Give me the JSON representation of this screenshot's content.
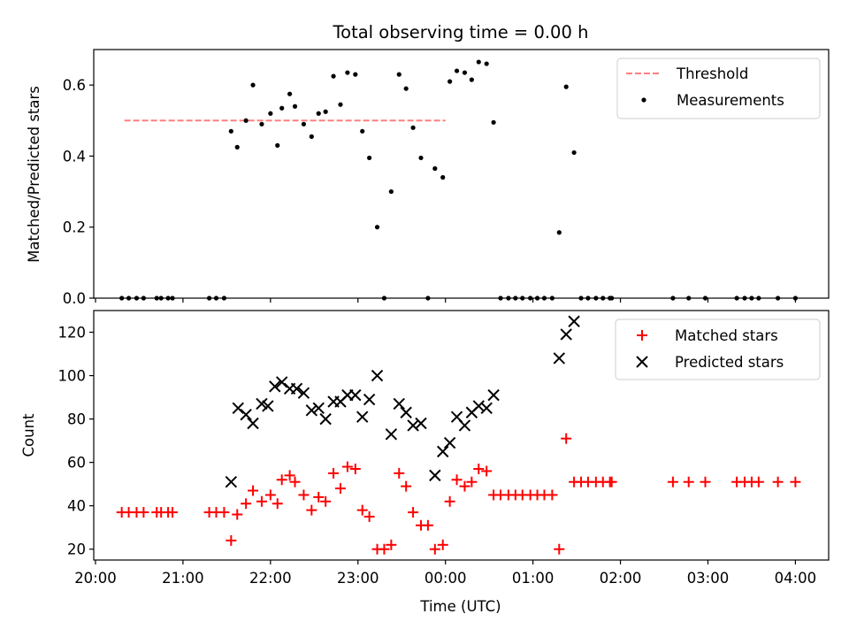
{
  "figure": {
    "title": "Total observing time = 0.00 h",
    "xlabel": "Time (UTC)"
  },
  "chart_data": [
    {
      "type": "scatter",
      "ylabel": "Matched/Predicted stars",
      "ylim": [
        0,
        0.7
      ],
      "yticks": [
        0.0,
        0.2,
        0.4,
        0.6
      ],
      "ytick_labels": [
        "0.0",
        "0.2",
        "0.4",
        "0.6"
      ],
      "xlim": [
        19.98,
        28.38
      ],
      "legend": {
        "position": "top-right"
      },
      "series": [
        {
          "name": "Threshold",
          "kind": "line",
          "color": "#ff7f7f",
          "style": "dashed",
          "x": [
            20.33,
            24.0
          ],
          "y": [
            0.5,
            0.5
          ]
        },
        {
          "name": "Measurements",
          "kind": "points",
          "color": "#000000",
          "x": [
            20.3,
            20.38,
            20.47,
            20.55,
            20.7,
            20.75,
            20.83,
            20.88,
            21.3,
            21.38,
            21.47,
            21.55,
            21.62,
            21.72,
            21.8,
            21.9,
            22.0,
            22.08,
            22.13,
            22.22,
            22.28,
            22.38,
            22.47,
            22.55,
            22.63,
            22.72,
            22.8,
            22.88,
            22.97,
            23.05,
            23.13,
            23.22,
            23.3,
            23.38,
            23.47,
            23.55,
            23.63,
            23.72,
            23.8,
            23.88,
            23.97,
            24.05,
            24.13,
            24.22,
            24.3,
            24.38,
            24.47,
            24.55,
            24.63,
            24.72,
            24.8,
            24.88,
            24.97,
            25.05,
            25.13,
            25.22,
            25.3,
            25.38,
            25.47,
            25.55,
            25.63,
            25.72,
            25.8,
            25.88,
            25.9,
            26.6,
            26.78,
            26.97,
            27.33,
            27.42,
            27.5,
            27.58,
            27.8,
            28.0
          ],
          "y": [
            0,
            0,
            0,
            0,
            0,
            0,
            0,
            0,
            0,
            0,
            0,
            0.47,
            0.425,
            0.5,
            0.6,
            0.49,
            0.52,
            0.43,
            0.535,
            0.575,
            0.54,
            0.49,
            0.455,
            0.52,
            0.525,
            0.625,
            0.545,
            0.635,
            0.63,
            0.47,
            0.395,
            0.2,
            0,
            0.3,
            0.63,
            0.59,
            0.48,
            0.395,
            0,
            0.365,
            0.34,
            0.61,
            0.64,
            0.635,
            0.615,
            0.665,
            0.66,
            0.495,
            0,
            0,
            0,
            0,
            0,
            0,
            0,
            0,
            0.185,
            0.595,
            0.41,
            0,
            0,
            0,
            0,
            0,
            0,
            0,
            0,
            0,
            0,
            0,
            0,
            0,
            0,
            0
          ]
        }
      ]
    },
    {
      "type": "scatter",
      "ylabel": "Count",
      "ylim": [
        15,
        130
      ],
      "yticks": [
        20,
        40,
        60,
        80,
        100,
        120
      ],
      "ytick_labels": [
        "20",
        "40",
        "60",
        "80",
        "100",
        "120"
      ],
      "xlim": [
        19.98,
        28.38
      ],
      "xticks": [
        20,
        21,
        22,
        23,
        24,
        25,
        26,
        27,
        28
      ],
      "xtick_labels": [
        "20:00",
        "21:00",
        "22:00",
        "23:00",
        "00:00",
        "01:00",
        "02:00",
        "03:00",
        "04:00"
      ],
      "legend": {
        "position": "top-right"
      },
      "series": [
        {
          "name": "Matched stars",
          "kind": "plus",
          "color": "#ff0000",
          "x": [
            20.3,
            20.38,
            20.47,
            20.55,
            20.7,
            20.75,
            20.83,
            20.88,
            21.3,
            21.38,
            21.47,
            21.55,
            21.62,
            21.72,
            21.8,
            21.9,
            22.0,
            22.08,
            22.13,
            22.22,
            22.28,
            22.38,
            22.47,
            22.55,
            22.63,
            22.72,
            22.8,
            22.88,
            22.97,
            23.05,
            23.13,
            23.22,
            23.3,
            23.38,
            23.47,
            23.55,
            23.63,
            23.72,
            23.8,
            23.88,
            23.97,
            24.05,
            24.13,
            24.22,
            24.3,
            24.38,
            24.47,
            24.55,
            24.63,
            24.72,
            24.8,
            24.88,
            24.97,
            25.05,
            25.13,
            25.22,
            25.3,
            25.38,
            25.47,
            25.55,
            25.63,
            25.72,
            25.8,
            25.88,
            25.9,
            26.6,
            26.78,
            26.97,
            27.33,
            27.42,
            27.5,
            27.58,
            27.8,
            28.0
          ],
          "y": [
            37,
            37,
            37,
            37,
            37,
            37,
            37,
            37,
            37,
            37,
            37,
            24,
            36,
            41,
            47,
            42,
            45,
            41,
            52,
            54,
            51,
            45,
            38,
            44,
            42,
            55,
            48,
            58,
            57,
            38,
            35,
            20,
            20,
            22,
            55,
            49,
            37,
            31,
            31,
            20,
            22,
            42,
            52,
            49,
            51,
            57,
            56,
            45,
            45,
            45,
            45,
            45,
            45,
            45,
            45,
            45,
            20,
            71,
            51,
            51,
            51,
            51,
            51,
            51,
            51,
            51,
            51,
            51,
            51,
            51,
            51,
            51,
            51,
            51
          ]
        },
        {
          "name": "Predicted stars",
          "kind": "cross",
          "color": "#000000",
          "x": [
            21.55,
            21.63,
            21.72,
            21.8,
            21.9,
            21.97,
            22.05,
            22.13,
            22.22,
            22.3,
            22.38,
            22.47,
            22.55,
            22.63,
            22.72,
            22.8,
            22.88,
            22.97,
            23.05,
            23.13,
            23.22,
            23.38,
            23.47,
            23.55,
            23.63,
            23.72,
            23.88,
            23.97,
            24.05,
            24.13,
            24.22,
            24.3,
            24.38,
            24.47,
            24.55,
            25.3,
            25.38,
            25.47
          ],
          "y": [
            51,
            85,
            82,
            78,
            87,
            86,
            95,
            97,
            94,
            94,
            92,
            84,
            85,
            80,
            88,
            88,
            91,
            91,
            81,
            89,
            100,
            73,
            87,
            83,
            77,
            78,
            54,
            65,
            69,
            81,
            77,
            83,
            86,
            85,
            91,
            108,
            119,
            125
          ]
        }
      ]
    }
  ]
}
